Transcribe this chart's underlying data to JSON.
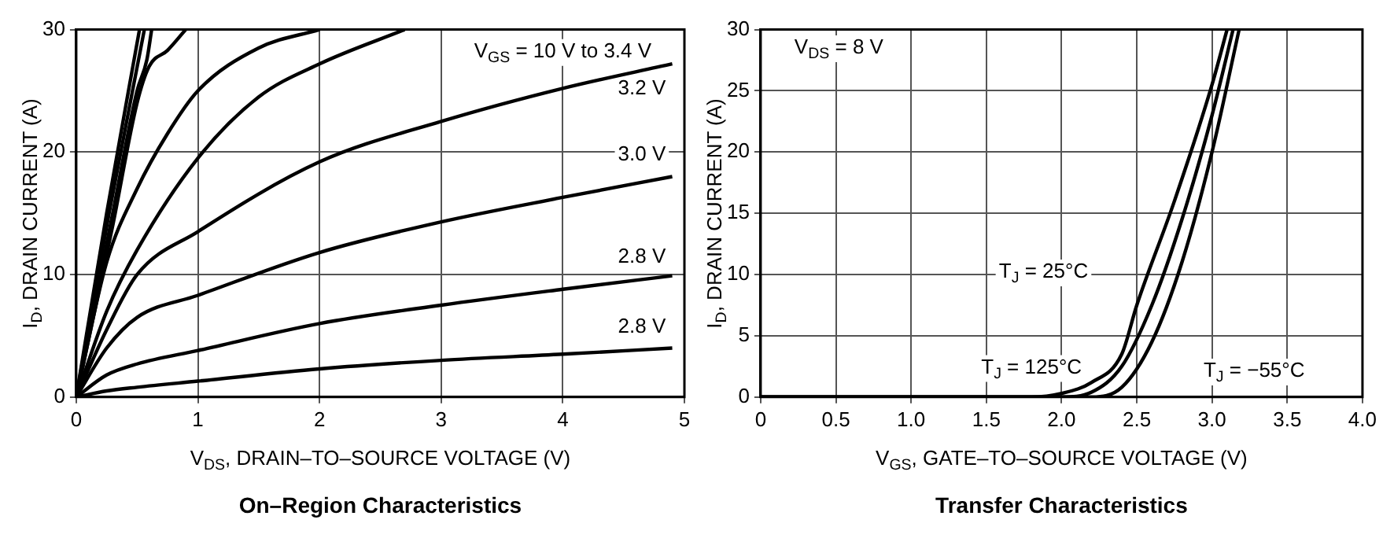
{
  "chart_data": [
    {
      "type": "line",
      "title": "On–Region Characteristics",
      "xlabel": "V$_{DS}$, DRAIN–TO–SOURCE VOLTAGE (V)",
      "ylabel": "I$_{D}$, DRAIN CURRENT (A)",
      "xlim": [
        0,
        5
      ],
      "ylim": [
        0,
        30
      ],
      "xticks": [
        0,
        1,
        2,
        3,
        4,
        5
      ],
      "yticks": [
        0,
        10,
        20,
        30
      ],
      "grid": true,
      "legend": false,
      "marker": "none",
      "line_style": "solid",
      "series": [
        {
          "color": "#000000",
          "x": [
            0,
            0.25,
            0.52
          ],
          "values": [
            0,
            15,
            30
          ]
        },
        {
          "color": "#000000",
          "x": [
            0,
            0.27,
            0.56
          ],
          "values": [
            0,
            15,
            30
          ]
        },
        {
          "color": "#000000",
          "x": [
            0,
            0.3,
            0.5,
            0.58,
            0.62
          ],
          "values": [
            0,
            15,
            25,
            27.5,
            30
          ]
        },
        {
          "color": "#000000",
          "x": [
            0,
            0.3,
            0.5,
            0.6,
            0.75,
            0.9
          ],
          "values": [
            0,
            14,
            24,
            27,
            28.3,
            30
          ]
        },
        {
          "color": "#000000",
          "x": [
            0,
            0.25,
            0.5,
            0.75,
            1,
            1.5,
            2
          ],
          "values": [
            0,
            11,
            17,
            21.5,
            25,
            28.5,
            30
          ]
        },
        {
          "color": "#000000",
          "x": [
            0,
            0.25,
            0.5,
            1,
            1.5,
            2,
            2.7
          ],
          "values": [
            0,
            7,
            12,
            19.5,
            24.5,
            27.2,
            30
          ]
        },
        {
          "color": "#000000",
          "x": [
            0,
            0.25,
            0.5,
            1,
            2,
            3,
            4,
            4.9
          ],
          "values": [
            0,
            5.5,
            10,
            13.5,
            19.2,
            22.5,
            25.2,
            27.2
          ]
        },
        {
          "color": "#000000",
          "x": [
            0,
            0.25,
            0.5,
            1,
            2,
            3,
            4,
            4.9
          ],
          "values": [
            0,
            4,
            6.5,
            8.3,
            11.8,
            14.3,
            16.3,
            18
          ]
        },
        {
          "color": "#000000",
          "x": [
            0,
            0.25,
            0.5,
            1,
            2,
            3,
            4,
            4.9
          ],
          "values": [
            0,
            1.8,
            2.7,
            3.8,
            6,
            7.5,
            8.8,
            9.9
          ]
        },
        {
          "color": "#000000",
          "x": [
            0,
            0.25,
            0.5,
            1,
            2,
            3,
            4,
            4.9
          ],
          "values": [
            0,
            0.5,
            0.8,
            1.3,
            2.3,
            3,
            3.5,
            4
          ]
        }
      ],
      "annotations": [
        "V$_{GS}$ = 10 V to 3.4 V",
        "3.2 V",
        "3.0 V",
        "2.8 V",
        "2.8 V"
      ]
    },
    {
      "type": "line",
      "title": "Transfer Characteristics",
      "xlabel": "V$_{GS}$, GATE–TO–SOURCE VOLTAGE (V)",
      "ylabel": "I$_{D}$, DRAIN CURRENT (A)",
      "xlim": [
        0,
        4
      ],
      "ylim": [
        0,
        30
      ],
      "xticks": [
        0,
        0.5,
        {
          "value": 1,
          "label": "1.0"
        },
        1.5,
        {
          "value": 2,
          "label": "2.0"
        },
        2.5,
        {
          "value": 3,
          "label": "3.0"
        },
        3.5,
        {
          "value": 4,
          "label": "4.0"
        }
      ],
      "yticks": [
        0,
        5,
        10,
        15,
        20,
        25,
        30
      ],
      "grid": true,
      "legend": false,
      "marker": "none",
      "line_style": "solid",
      "series": [
        {
          "color": "#000000",
          "x": [
            0,
            1.8,
            2,
            2.2,
            2.4,
            2.5,
            2.75,
            3,
            3.1
          ],
          "values": [
            0,
            0,
            0.3,
            1.2,
            3.5,
            7.5,
            16,
            25.5,
            30
          ]
        },
        {
          "color": "#000000",
          "x": [
            0,
            2,
            2.2,
            2.4,
            2.6,
            2.8,
            3,
            3.14
          ],
          "values": [
            0,
            0,
            0.4,
            2.5,
            7.5,
            14.5,
            23,
            30
          ]
        },
        {
          "color": "#000000",
          "x": [
            0,
            2.2,
            2.4,
            2.6,
            2.8,
            3,
            3.18
          ],
          "values": [
            0,
            0,
            0.8,
            4.5,
            11,
            20,
            30
          ]
        }
      ],
      "annotations": [
        "V$_{DS}$ = 8 V",
        "T$_{J}$ = 25°C",
        "T$_{J}$ = 125°C",
        "T$_{J}$ = −55°C"
      ]
    }
  ]
}
